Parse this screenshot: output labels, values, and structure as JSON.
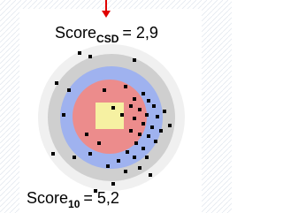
{
  "labels": [
    {
      "text": "Score",
      "subscript": "CSD",
      "value": "= 2,9"
    },
    {
      "text": "Score",
      "subscript": "10",
      "value": "= 5,2"
    }
  ]
}
